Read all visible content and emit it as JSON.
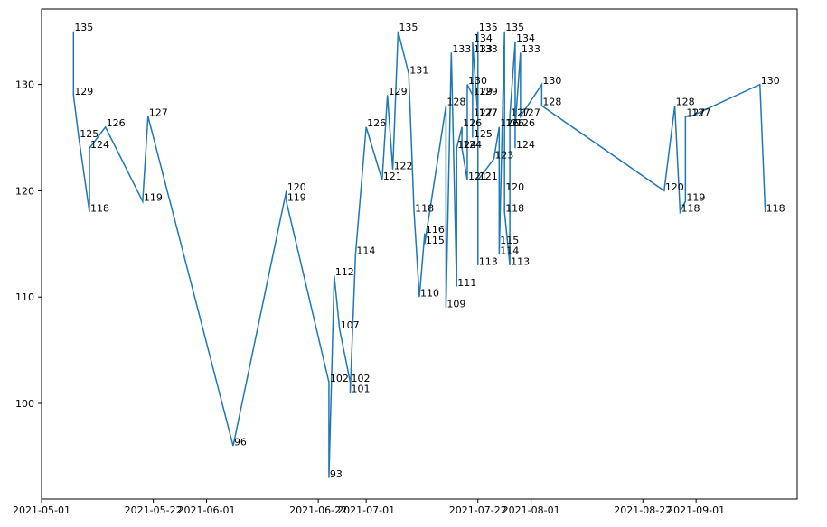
{
  "chart_data": {
    "type": "line",
    "x": [
      "2021-05-07",
      "2021-05-07",
      "2021-05-08",
      "2021-05-10",
      "2021-05-10",
      "2021-05-13",
      "2021-05-20",
      "2021-05-21",
      "2021-06-06",
      "2021-06-16",
      "2021-06-16",
      "2021-06-24",
      "2021-06-24",
      "2021-06-25",
      "2021-06-26",
      "2021-06-28",
      "2021-06-28",
      "2021-06-29",
      "2021-07-01",
      "2021-07-04",
      "2021-07-05",
      "2021-07-06",
      "2021-07-07",
      "2021-07-09",
      "2021-07-10",
      "2021-07-11",
      "2021-07-12",
      "2021-07-12",
      "2021-07-16",
      "2021-07-16",
      "2021-07-17",
      "2021-07-18",
      "2021-07-18",
      "2021-07-19",
      "2021-07-19",
      "2021-07-20",
      "2021-07-20",
      "2021-07-21",
      "2021-07-21",
      "2021-07-21",
      "2021-07-21",
      "2021-07-21",
      "2021-07-22",
      "2021-07-22",
      "2021-07-22",
      "2021-07-22",
      "2021-07-22",
      "2021-07-22",
      "2021-07-22",
      "2021-07-25",
      "2021-07-26",
      "2021-07-26",
      "2021-07-26",
      "2021-07-27",
      "2021-07-27",
      "2021-07-27",
      "2021-07-27",
      "2021-07-28",
      "2021-07-28",
      "2021-07-29",
      "2021-07-29",
      "2021-07-29",
      "2021-07-30",
      "2021-07-30",
      "2021-08-03",
      "2021-08-03",
      "2021-08-26",
      "2021-08-28",
      "2021-08-29",
      "2021-08-30",
      "2021-08-30",
      "2021-08-31",
      "2021-09-13",
      "2021-09-14"
    ],
    "values": [
      135,
      129,
      125,
      118,
      124,
      126,
      119,
      127,
      96,
      120,
      119,
      102,
      93,
      112,
      107,
      102,
      101,
      114,
      126,
      121,
      129,
      122,
      135,
      131,
      118,
      110,
      116,
      115,
      128,
      109,
      133,
      111,
      124,
      126,
      124,
      121,
      130,
      129,
      125,
      133,
      127,
      134,
      127,
      133,
      135,
      113,
      127,
      129,
      121,
      123,
      126,
      115,
      114,
      135,
      126,
      120,
      118,
      113,
      127,
      134,
      124,
      126,
      133,
      127,
      130,
      128,
      120,
      128,
      118,
      119,
      127,
      127,
      130,
      118
    ],
    "color": "#1f77b4",
    "xlim": [
      "2021-05-01",
      "2021-09-20"
    ],
    "xticks": [
      "2021-05-01",
      "2021-05-22",
      "2021-06-01",
      "2021-06-22",
      "2021-07-01",
      "2021-07-22",
      "2021-08-01",
      "2021-08-22",
      "2021-09-01"
    ],
    "ylim": [
      91,
      137.1
    ],
    "yticks": [
      100,
      110,
      120,
      130
    ]
  }
}
